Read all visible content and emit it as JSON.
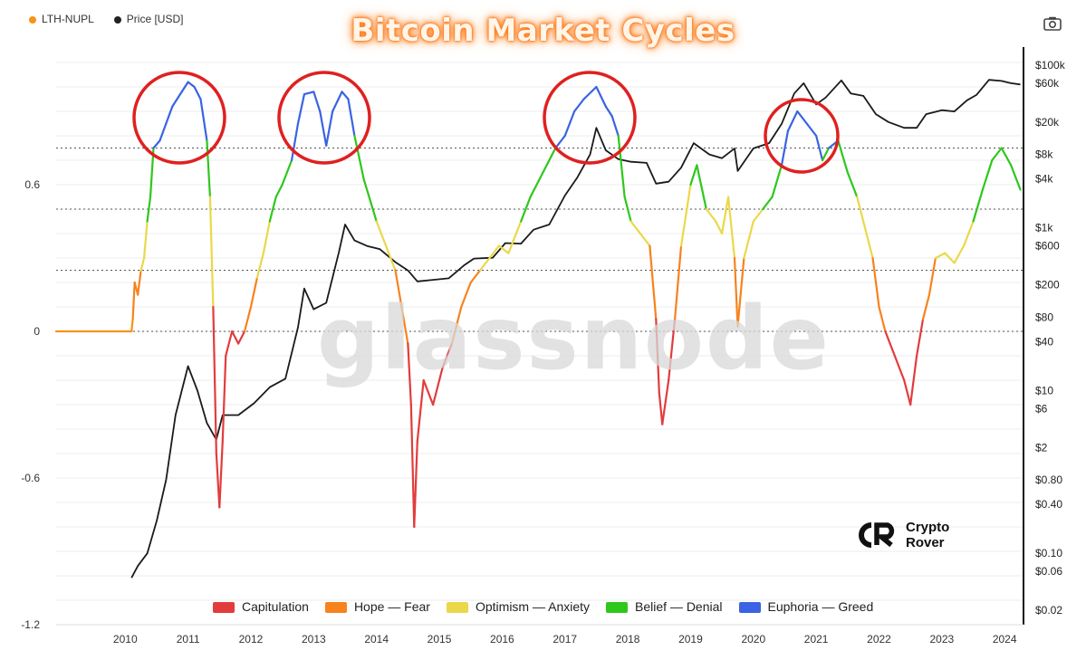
{
  "header": {
    "legend": [
      {
        "label": "LTH-NUPL",
        "color": "#f7931a"
      },
      {
        "label": "Price [USD]",
        "color": "#222222"
      }
    ],
    "title": "Bitcoin Market Cycles",
    "camera_icon": "camera-icon"
  },
  "watermark": "glassnode",
  "brand": {
    "line1": "Crypto",
    "line2": "Rover"
  },
  "zones": [
    {
      "label": "Capitulation",
      "color": "#e23c3c"
    },
    {
      "label": "Hope — Fear",
      "color": "#f7821e"
    },
    {
      "label": "Optimism — Anxiety",
      "color": "#ead84a"
    },
    {
      "label": "Belief — Denial",
      "color": "#2ec71c"
    },
    {
      "label": "Euphoria — Greed",
      "color": "#3a63e3"
    }
  ],
  "chart_data": {
    "type": "line",
    "title": "Bitcoin Market Cycles",
    "x_ticks": [
      "2010",
      "2011",
      "2012",
      "2013",
      "2014",
      "2015",
      "2016",
      "2017",
      "2018",
      "2019",
      "2020",
      "2021",
      "2022",
      "2023",
      "2024"
    ],
    "xlim": [
      2009.35,
      2024.75
    ],
    "left_axis": {
      "ticks": [
        "0.6",
        "0",
        "-0.6",
        "-1.2"
      ],
      "ylim": [
        -1.25,
        1.2
      ]
    },
    "right_axis": {
      "scale": "log",
      "ticks": [
        "$100k",
        "$60k",
        "$20k",
        "$8k",
        "$4k",
        "$1k",
        "$600",
        "$200",
        "$80",
        "$40",
        "$10",
        "$6",
        "$2",
        "$0.80",
        "$0.40",
        "$0.10",
        "$0.06",
        "$0.02"
      ],
      "ylim": [
        0.02,
        160000
      ]
    },
    "zone_thresholds": [
      0,
      0.25,
      0.5,
      0.75
    ],
    "series": [
      {
        "name": "LTH-NUPL",
        "axis": "left",
        "points": [
          [
            2009.35,
            0.0
          ],
          [
            2010.55,
            0.0
          ],
          [
            2010.57,
            0.05
          ],
          [
            2010.6,
            0.2
          ],
          [
            2010.65,
            0.15
          ],
          [
            2010.7,
            0.25
          ],
          [
            2010.75,
            0.3
          ],
          [
            2010.8,
            0.45
          ],
          [
            2010.85,
            0.55
          ],
          [
            2010.9,
            0.75
          ],
          [
            2011.0,
            0.78
          ],
          [
            2011.1,
            0.85
          ],
          [
            2011.2,
            0.92
          ],
          [
            2011.35,
            0.98
          ],
          [
            2011.45,
            1.02
          ],
          [
            2011.55,
            1.0
          ],
          [
            2011.65,
            0.95
          ],
          [
            2011.75,
            0.78
          ],
          [
            2011.8,
            0.55
          ],
          [
            2011.85,
            0.1
          ],
          [
            2011.9,
            -0.5
          ],
          [
            2011.95,
            -0.72
          ],
          [
            2012.0,
            -0.45
          ],
          [
            2012.05,
            -0.1
          ],
          [
            2012.15,
            0.0
          ],
          [
            2012.25,
            -0.05
          ],
          [
            2012.35,
            0.0
          ],
          [
            2012.45,
            0.1
          ],
          [
            2012.55,
            0.22
          ],
          [
            2012.65,
            0.32
          ],
          [
            2012.75,
            0.45
          ],
          [
            2012.85,
            0.55
          ],
          [
            2012.95,
            0.6
          ],
          [
            2013.1,
            0.7
          ],
          [
            2013.2,
            0.85
          ],
          [
            2013.3,
            0.97
          ],
          [
            2013.45,
            0.98
          ],
          [
            2013.55,
            0.9
          ],
          [
            2013.65,
            0.76
          ],
          [
            2013.75,
            0.9
          ],
          [
            2013.9,
            0.98
          ],
          [
            2014.0,
            0.95
          ],
          [
            2014.1,
            0.8
          ],
          [
            2014.25,
            0.62
          ],
          [
            2014.45,
            0.45
          ],
          [
            2014.6,
            0.35
          ],
          [
            2014.75,
            0.25
          ],
          [
            2014.85,
            0.1
          ],
          [
            2014.95,
            -0.05
          ],
          [
            2015.0,
            -0.3
          ],
          [
            2015.05,
            -0.8
          ],
          [
            2015.1,
            -0.45
          ],
          [
            2015.2,
            -0.2
          ],
          [
            2015.35,
            -0.3
          ],
          [
            2015.5,
            -0.15
          ],
          [
            2015.65,
            -0.05
          ],
          [
            2015.8,
            0.1
          ],
          [
            2015.95,
            0.2
          ],
          [
            2016.1,
            0.25
          ],
          [
            2016.25,
            0.3
          ],
          [
            2016.4,
            0.35
          ],
          [
            2016.55,
            0.32
          ],
          [
            2016.75,
            0.45
          ],
          [
            2016.9,
            0.55
          ],
          [
            2017.1,
            0.65
          ],
          [
            2017.3,
            0.75
          ],
          [
            2017.45,
            0.8
          ],
          [
            2017.6,
            0.9
          ],
          [
            2017.75,
            0.95
          ],
          [
            2017.95,
            1.0
          ],
          [
            2018.1,
            0.92
          ],
          [
            2018.2,
            0.88
          ],
          [
            2018.3,
            0.8
          ],
          [
            2018.4,
            0.55
          ],
          [
            2018.5,
            0.45
          ],
          [
            2018.65,
            0.4
          ],
          [
            2018.8,
            0.35
          ],
          [
            2018.9,
            0.05
          ],
          [
            2018.95,
            -0.25
          ],
          [
            2019.0,
            -0.38
          ],
          [
            2019.1,
            -0.2
          ],
          [
            2019.2,
            0.05
          ],
          [
            2019.3,
            0.35
          ],
          [
            2019.45,
            0.6
          ],
          [
            2019.55,
            0.68
          ],
          [
            2019.7,
            0.5
          ],
          [
            2019.85,
            0.45
          ],
          [
            2019.95,
            0.4
          ],
          [
            2020.05,
            0.55
          ],
          [
            2020.15,
            0.3
          ],
          [
            2020.2,
            0.02
          ],
          [
            2020.3,
            0.3
          ],
          [
            2020.45,
            0.45
          ],
          [
            2020.6,
            0.5
          ],
          [
            2020.75,
            0.55
          ],
          [
            2020.9,
            0.68
          ],
          [
            2021.0,
            0.82
          ],
          [
            2021.15,
            0.9
          ],
          [
            2021.3,
            0.85
          ],
          [
            2021.45,
            0.8
          ],
          [
            2021.55,
            0.7
          ],
          [
            2021.65,
            0.75
          ],
          [
            2021.8,
            0.78
          ],
          [
            2021.95,
            0.65
          ],
          [
            2022.1,
            0.55
          ],
          [
            2022.25,
            0.4
          ],
          [
            2022.35,
            0.3
          ],
          [
            2022.45,
            0.1
          ],
          [
            2022.55,
            0.0
          ],
          [
            2022.7,
            -0.1
          ],
          [
            2022.85,
            -0.2
          ],
          [
            2022.95,
            -0.3
          ],
          [
            2023.05,
            -0.1
          ],
          [
            2023.15,
            0.05
          ],
          [
            2023.25,
            0.15
          ],
          [
            2023.35,
            0.3
          ],
          [
            2023.5,
            0.32
          ],
          [
            2023.65,
            0.28
          ],
          [
            2023.8,
            0.35
          ],
          [
            2023.95,
            0.45
          ],
          [
            2024.1,
            0.58
          ],
          [
            2024.25,
            0.7
          ],
          [
            2024.4,
            0.75
          ],
          [
            2024.55,
            0.68
          ],
          [
            2024.7,
            0.58
          ]
        ]
      },
      {
        "name": "Price [USD]",
        "axis": "right",
        "points": [
          [
            2010.55,
            0.05
          ],
          [
            2010.65,
            0.07
          ],
          [
            2010.8,
            0.1
          ],
          [
            2010.95,
            0.25
          ],
          [
            2011.1,
            0.8
          ],
          [
            2011.25,
            5
          ],
          [
            2011.45,
            20
          ],
          [
            2011.6,
            10
          ],
          [
            2011.75,
            4
          ],
          [
            2011.9,
            2.5
          ],
          [
            2012.0,
            5
          ],
          [
            2012.25,
            5
          ],
          [
            2012.5,
            7
          ],
          [
            2012.75,
            11
          ],
          [
            2013.0,
            14
          ],
          [
            2013.2,
            60
          ],
          [
            2013.3,
            180
          ],
          [
            2013.45,
            100
          ],
          [
            2013.65,
            120
          ],
          [
            2013.85,
            500
          ],
          [
            2013.95,
            1100
          ],
          [
            2014.1,
            700
          ],
          [
            2014.3,
            600
          ],
          [
            2014.5,
            550
          ],
          [
            2014.75,
            380
          ],
          [
            2014.95,
            300
          ],
          [
            2015.1,
            220
          ],
          [
            2015.35,
            230
          ],
          [
            2015.6,
            240
          ],
          [
            2015.85,
            350
          ],
          [
            2016.0,
            420
          ],
          [
            2016.3,
            430
          ],
          [
            2016.5,
            650
          ],
          [
            2016.75,
            640
          ],
          [
            2016.95,
            950
          ],
          [
            2017.2,
            1100
          ],
          [
            2017.45,
            2500
          ],
          [
            2017.65,
            4200
          ],
          [
            2017.85,
            8000
          ],
          [
            2017.95,
            17000
          ],
          [
            2018.1,
            9000
          ],
          [
            2018.3,
            7000
          ],
          [
            2018.5,
            6500
          ],
          [
            2018.75,
            6300
          ],
          [
            2018.9,
            3500
          ],
          [
            2019.1,
            3700
          ],
          [
            2019.3,
            5500
          ],
          [
            2019.5,
            11000
          ],
          [
            2019.75,
            8000
          ],
          [
            2019.95,
            7200
          ],
          [
            2020.15,
            9500
          ],
          [
            2020.2,
            5000
          ],
          [
            2020.45,
            9500
          ],
          [
            2020.7,
            11000
          ],
          [
            2020.9,
            19000
          ],
          [
            2021.1,
            45000
          ],
          [
            2021.25,
            60000
          ],
          [
            2021.45,
            33000
          ],
          [
            2021.6,
            40000
          ],
          [
            2021.85,
            65000
          ],
          [
            2022.0,
            45000
          ],
          [
            2022.2,
            42000
          ],
          [
            2022.4,
            25000
          ],
          [
            2022.6,
            20000
          ],
          [
            2022.85,
            17000
          ],
          [
            2023.05,
            17000
          ],
          [
            2023.2,
            25000
          ],
          [
            2023.45,
            28000
          ],
          [
            2023.65,
            27000
          ],
          [
            2023.85,
            37000
          ],
          [
            2024.0,
            43000
          ],
          [
            2024.2,
            66000
          ],
          [
            2024.4,
            64000
          ],
          [
            2024.55,
            60000
          ],
          [
            2024.7,
            58000
          ]
        ]
      }
    ],
    "highlight_circles": [
      "2011",
      "2013",
      "2017",
      "2021"
    ]
  }
}
